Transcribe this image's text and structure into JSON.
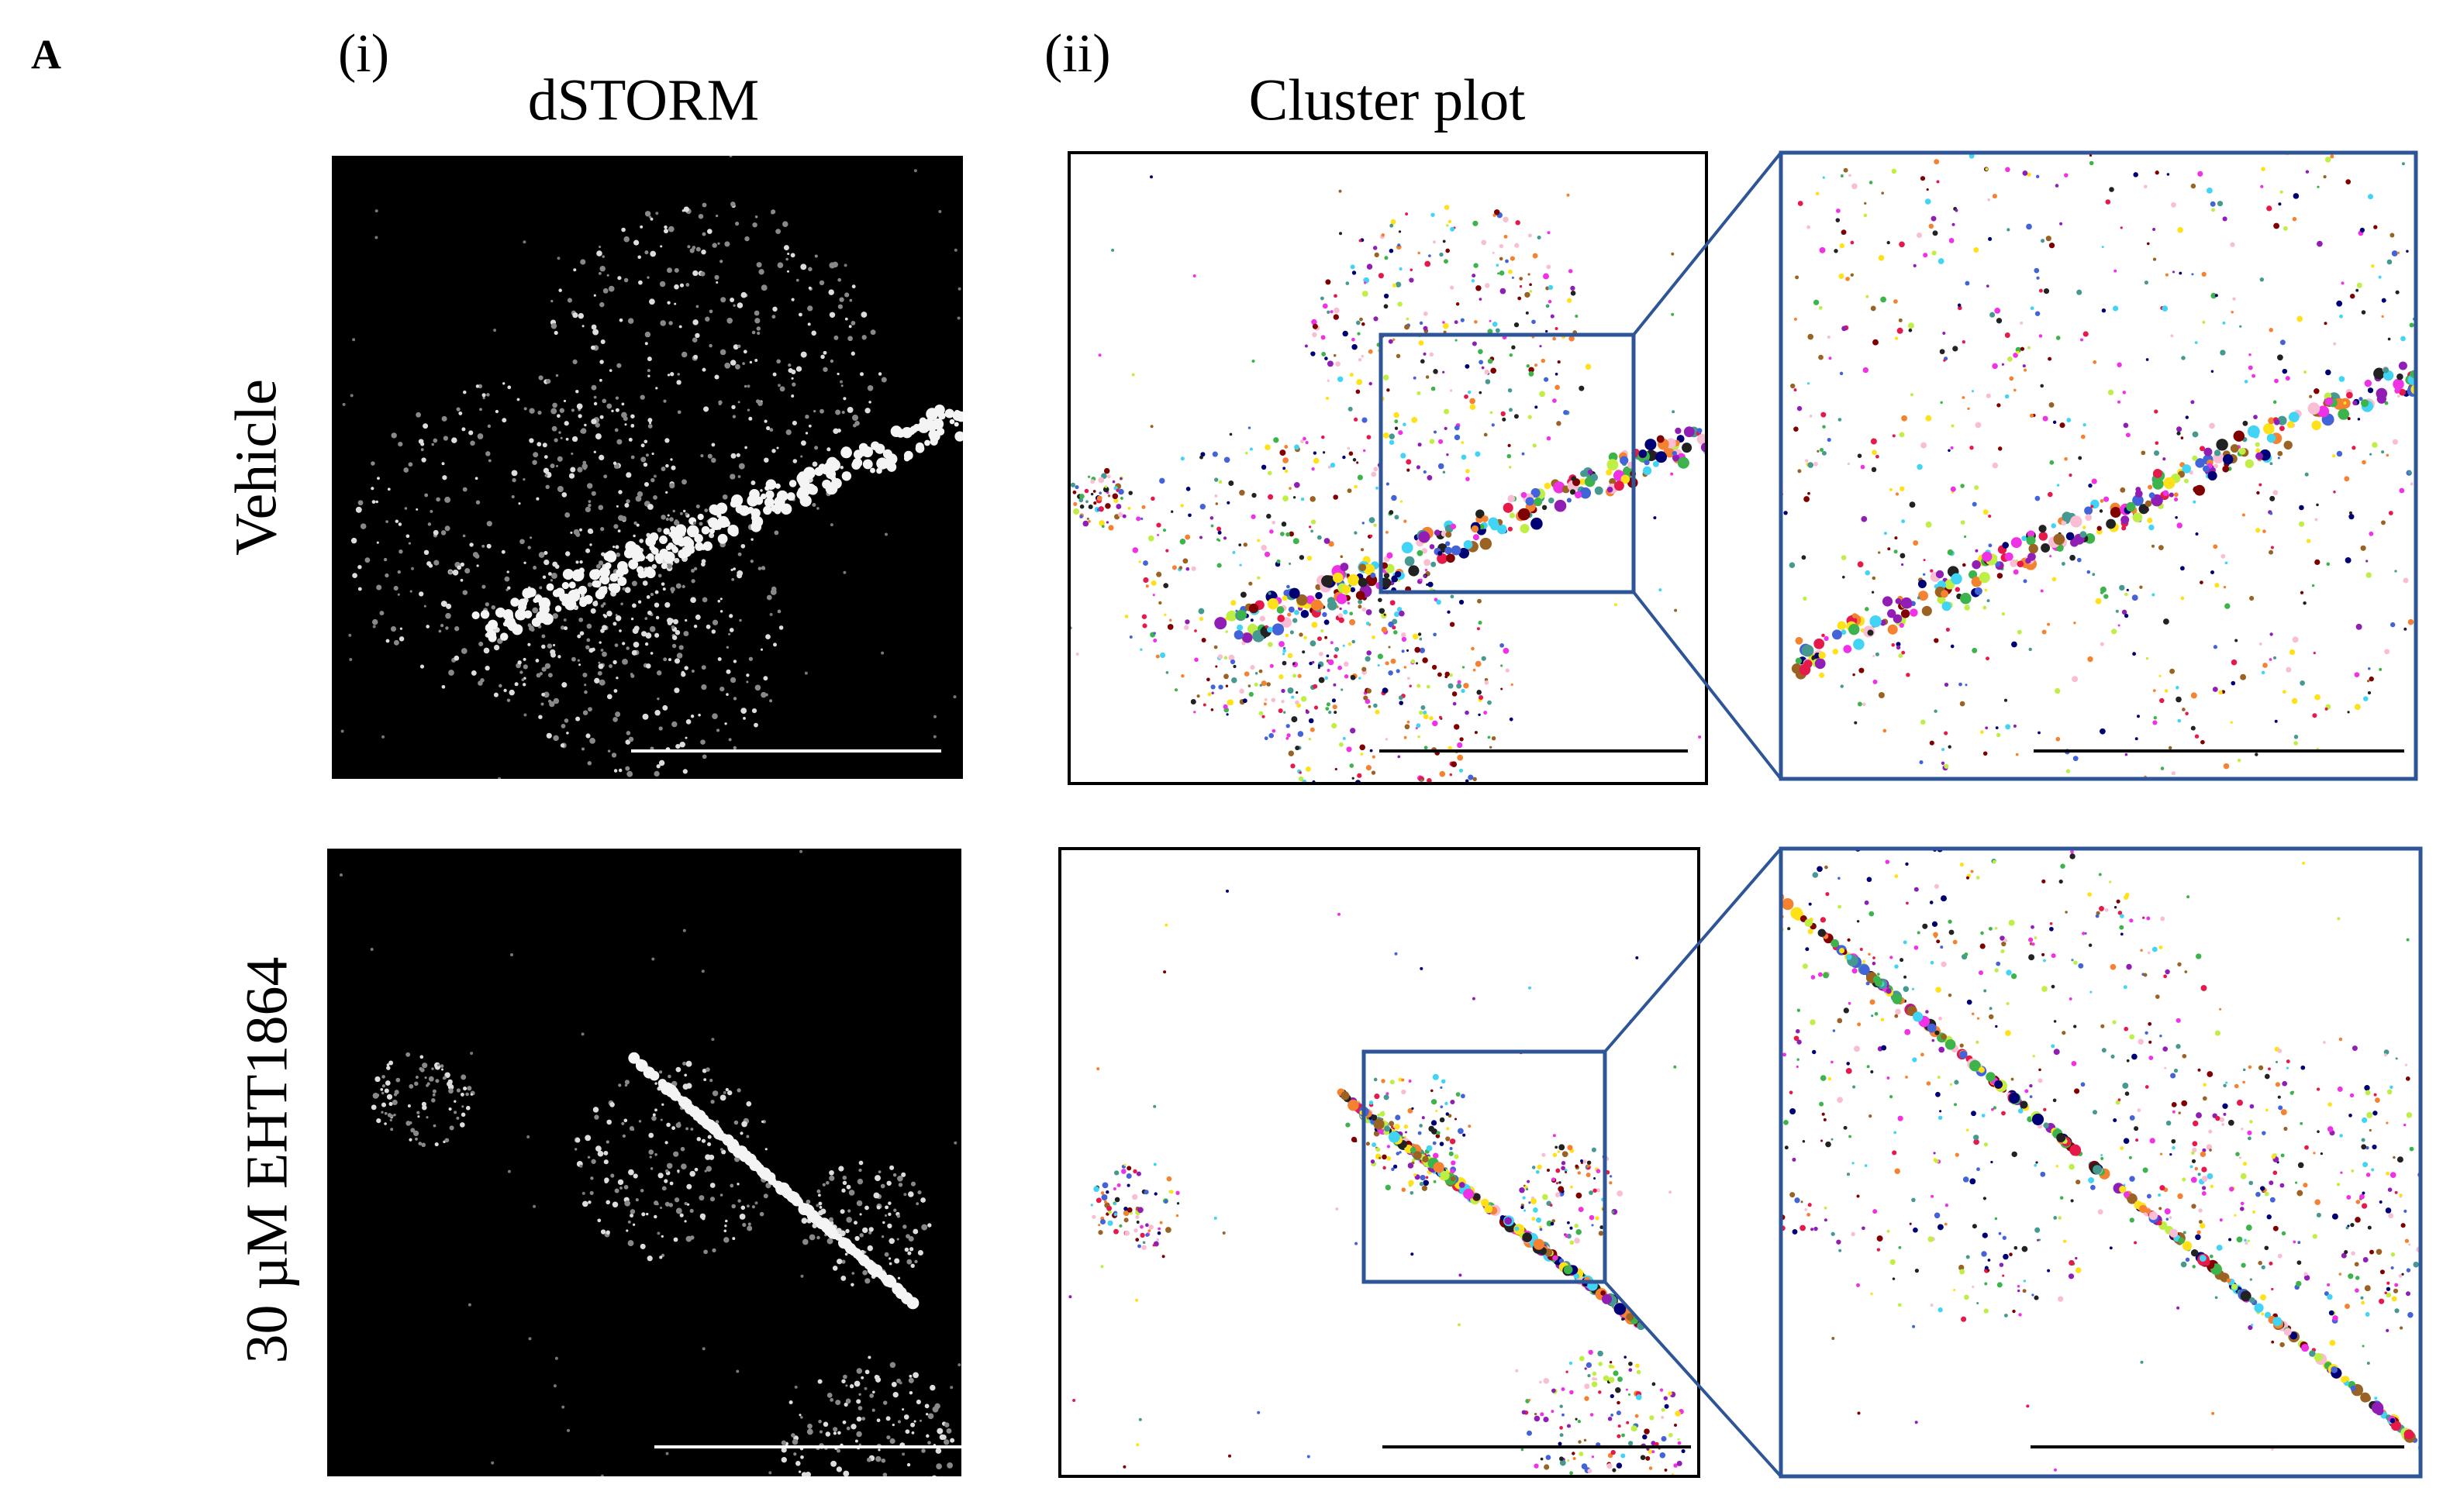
{
  "panel_label": "A",
  "columns": [
    {
      "label": "(i)",
      "title": "dSTORM"
    },
    {
      "label": "(ii)",
      "title": "Cluster plot"
    }
  ],
  "rows": [
    {
      "label": "Vehicle"
    },
    {
      "label": "30 µM EHT1864"
    }
  ]
}
